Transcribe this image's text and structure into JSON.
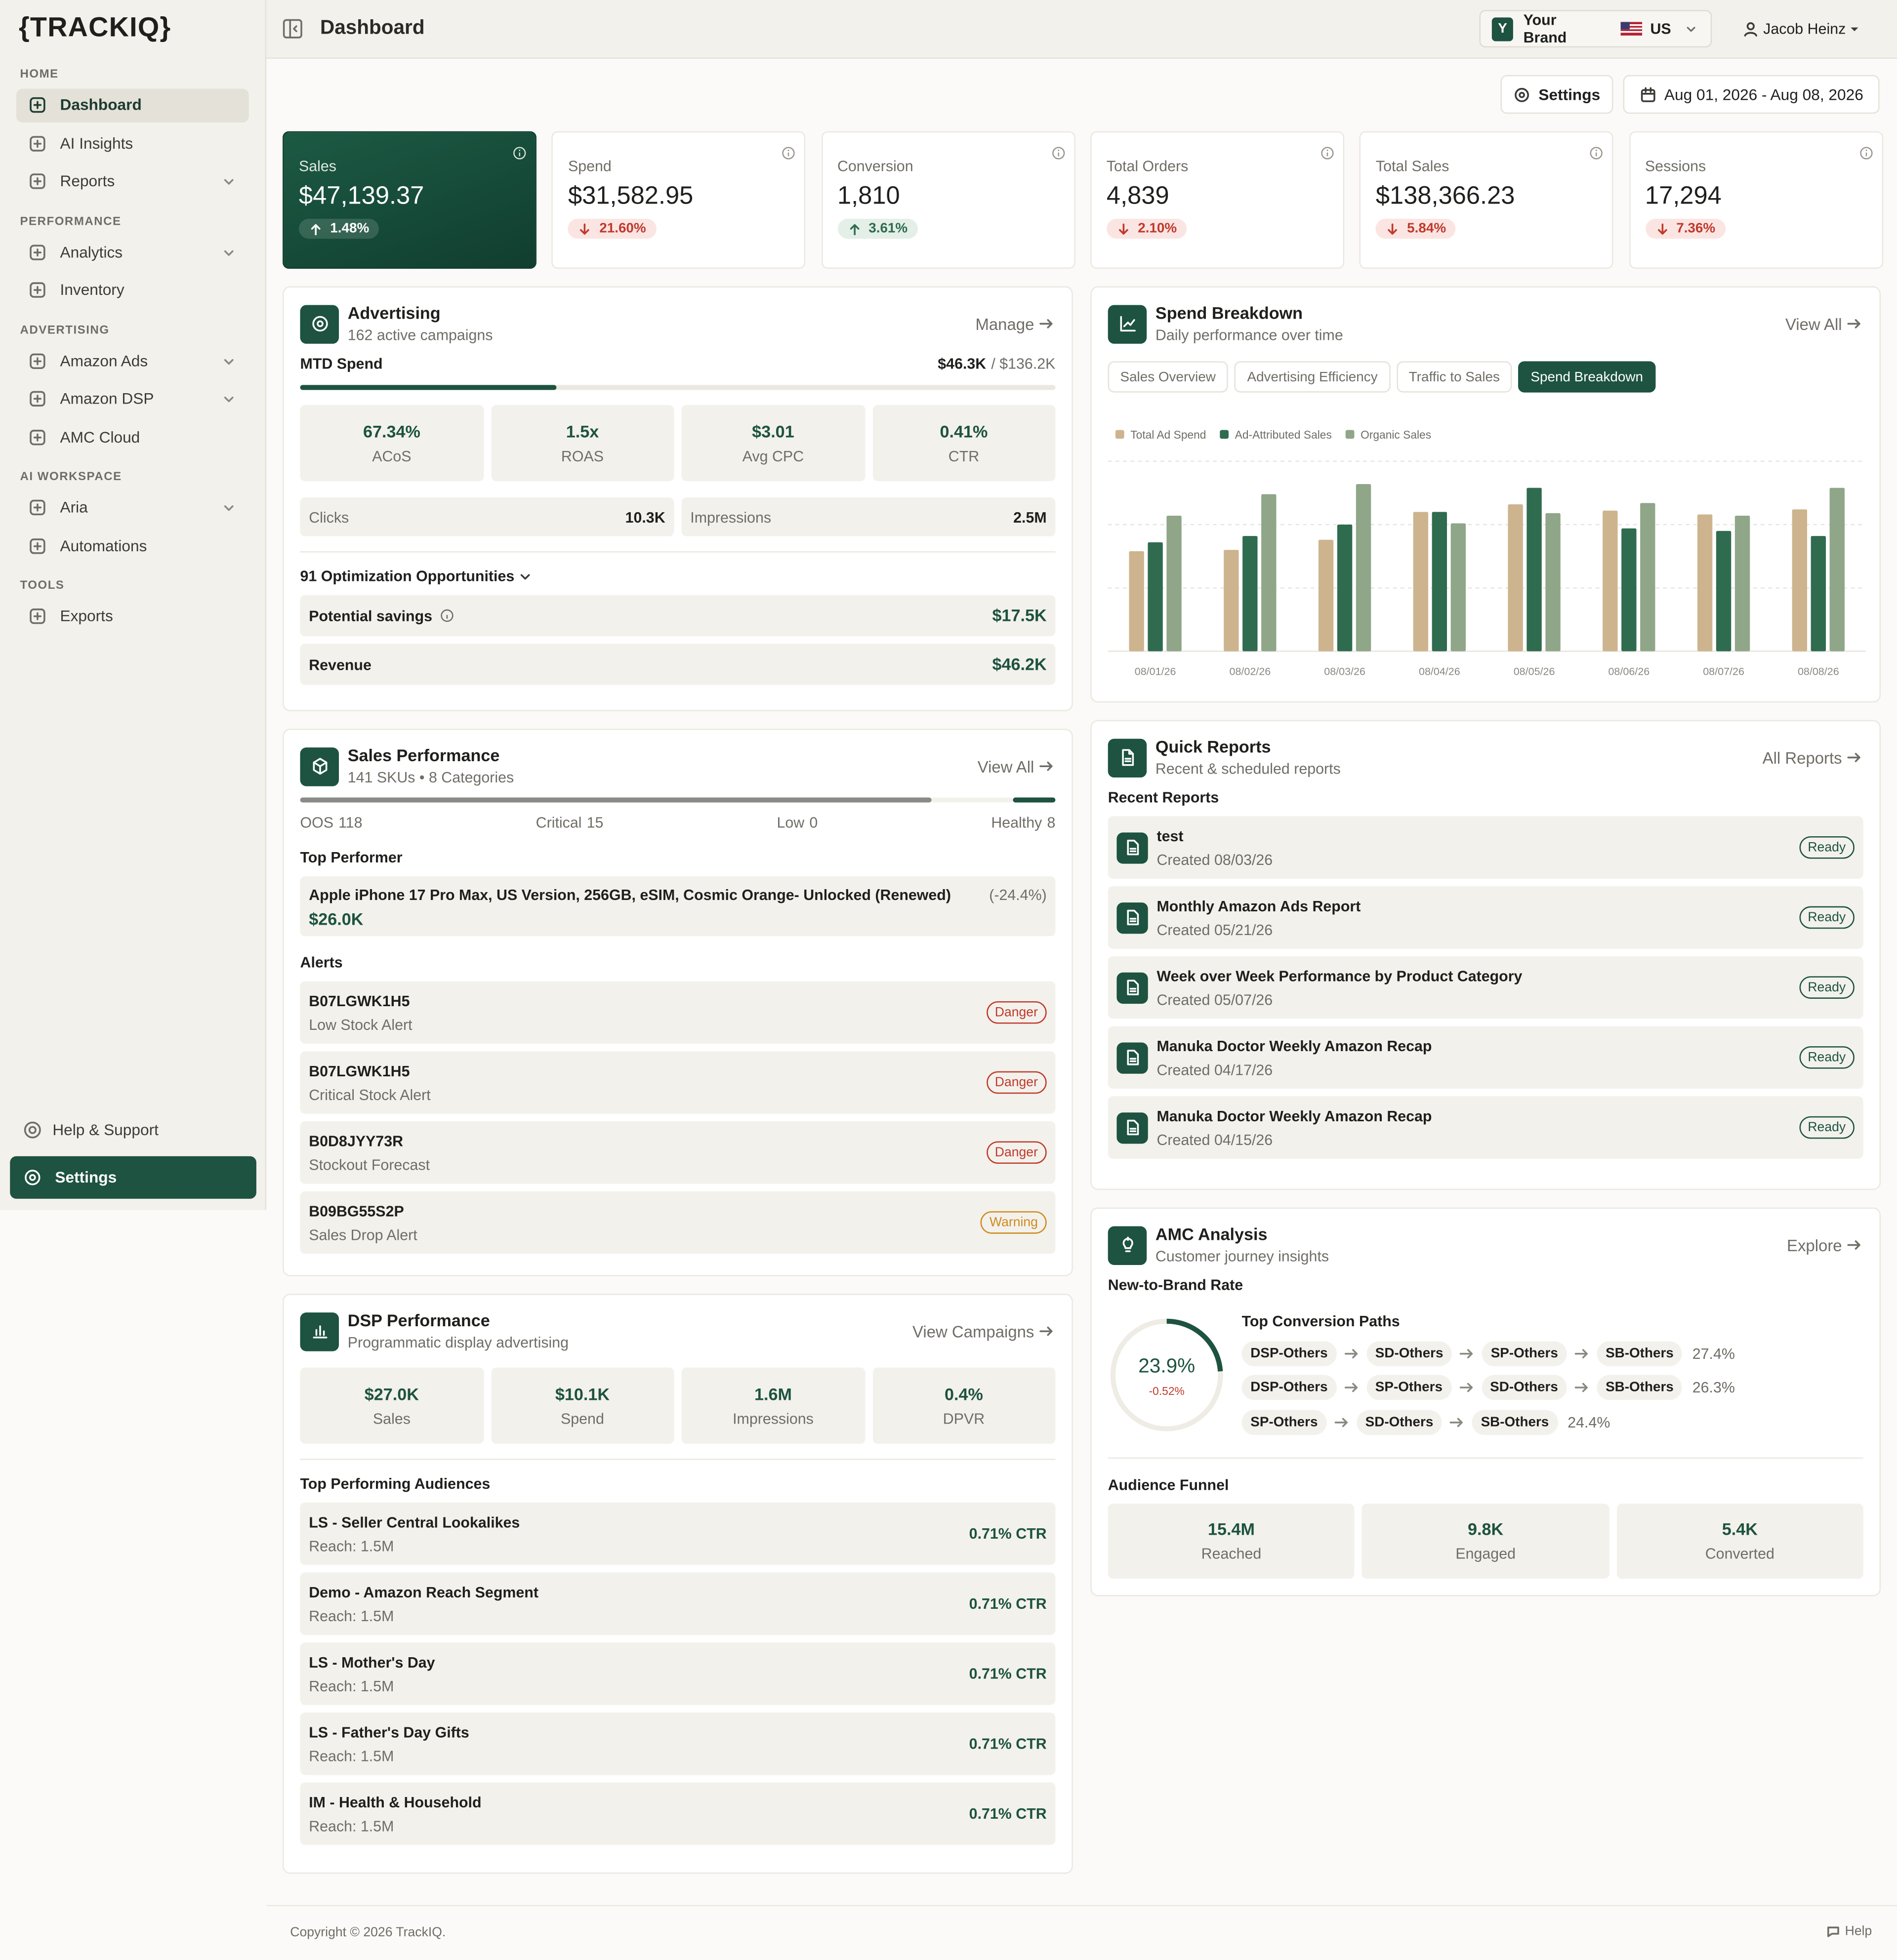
{
  "sidebar": {
    "logo": "{TRACKIQ}",
    "sections": [
      {
        "title": "HOME",
        "items": [
          {
            "label": "Dashboard",
            "active": true
          },
          {
            "label": "AI Insights"
          },
          {
            "label": "Reports",
            "expandable": true
          }
        ]
      },
      {
        "title": "PERFORMANCE",
        "items": [
          {
            "label": "Analytics",
            "expandable": true
          },
          {
            "label": "Inventory"
          }
        ]
      },
      {
        "title": "ADVERTISING",
        "items": [
          {
            "label": "Amazon Ads",
            "expandable": true
          },
          {
            "label": "Amazon DSP",
            "expandable": true
          },
          {
            "label": "AMC Cloud"
          }
        ]
      },
      {
        "title": "AI WORKSPACE",
        "items": [
          {
            "label": "Aria",
            "expandable": true
          },
          {
            "label": "Automations"
          }
        ]
      },
      {
        "title": "TOOLS",
        "items": [
          {
            "label": "Exports"
          }
        ]
      }
    ],
    "help": "Help & Support",
    "settings": "Settings"
  },
  "header": {
    "title": "Dashboard",
    "brand_initial": "Y",
    "brand": "Your Brand",
    "country": "US",
    "user": "Jacob Heinz",
    "settings": "Settings",
    "date_range": "Aug 01, 2026 - Aug 08, 2026"
  },
  "kpis": [
    {
      "label": "Sales",
      "value": "$47,139.37",
      "change": "1.48%",
      "trend": "up"
    },
    {
      "label": "Spend",
      "value": "$31,582.95",
      "change": "21.60%",
      "trend": "down"
    },
    {
      "label": "Conversion",
      "value": "1,810",
      "change": "3.61%",
      "trend": "up"
    },
    {
      "label": "Total Orders",
      "value": "4,839",
      "change": "2.10%",
      "trend": "down"
    },
    {
      "label": "Total Sales",
      "value": "$138,366.23",
      "change": "5.84%",
      "trend": "down"
    },
    {
      "label": "Sessions",
      "value": "17,294",
      "change": "7.36%",
      "trend": "down"
    }
  ],
  "advertising": {
    "title": "Advertising",
    "subtitle": "162 active campaigns",
    "action": "Manage",
    "mtd_label": "MTD Spend",
    "mtd_value": "$46.3K",
    "mtd_total": "/ $136.2K",
    "metrics": [
      {
        "value": "67.34%",
        "label": "ACoS"
      },
      {
        "value": "1.5x",
        "label": "ROAS"
      },
      {
        "value": "$3.01",
        "label": "Avg CPC"
      },
      {
        "value": "0.41%",
        "label": "CTR"
      }
    ],
    "clicks_label": "Clicks",
    "clicks": "10.3K",
    "impressions_label": "Impressions",
    "impressions": "2.5M",
    "opportunities": "91 Optimization Opportunities",
    "savings_label": "Potential savings",
    "savings": "$17.5K",
    "revenue_label": "Revenue",
    "revenue": "$46.2K"
  },
  "sales_performance": {
    "title": "Sales Performance",
    "subtitle": "141 SKUs • 8 Categories",
    "action": "View All",
    "stock": [
      {
        "label": "OOS",
        "count": 118,
        "color": "#8a8a86"
      },
      {
        "label": "Critical",
        "count": 15,
        "color": "#f3f1ec"
      },
      {
        "label": "Low",
        "count": 0,
        "color": "#d4a03a"
      },
      {
        "label": "Healthy",
        "count": 8,
        "color": "#1d5340"
      }
    ],
    "top_performer_label": "Top Performer",
    "product": "Apple iPhone 17 Pro Max, US Version, 256GB, eSIM, Cosmic Orange- Unlocked (Renewed)",
    "product_change": "(-24.4%)",
    "product_value": "$26.0K",
    "alerts_label": "Alerts",
    "alerts": [
      {
        "id": "B07LGWK1H5",
        "type": "Low Stock Alert",
        "badge": "Danger"
      },
      {
        "id": "B07LGWK1H5",
        "type": "Critical Stock Alert",
        "badge": "Danger"
      },
      {
        "id": "B0D8JYY73R",
        "type": "Stockout Forecast",
        "badge": "Danger"
      },
      {
        "id": "B09BG55S2P",
        "type": "Sales Drop Alert",
        "badge": "Warning"
      }
    ]
  },
  "dsp": {
    "title": "DSP Performance",
    "subtitle": "Programmatic display advertising",
    "action": "View Campaigns",
    "metrics": [
      {
        "value": "$27.0K",
        "label": "Sales"
      },
      {
        "value": "$10.1K",
        "label": "Spend"
      },
      {
        "value": "1.6M",
        "label": "Impressions"
      },
      {
        "value": "0.4%",
        "label": "DPVR"
      }
    ],
    "audiences_label": "Top Performing Audiences",
    "audiences": [
      {
        "name": "LS - Seller Central Lookalikes",
        "reach": "Reach: 1.5M",
        "ctr": "0.71% CTR"
      },
      {
        "name": "Demo - Amazon Reach Segment",
        "reach": "Reach: 1.5M",
        "ctr": "0.71% CTR"
      },
      {
        "name": "LS - Mother's Day",
        "reach": "Reach: 1.5M",
        "ctr": "0.71% CTR"
      },
      {
        "name": "LS - Father's Day Gifts",
        "reach": "Reach: 1.5M",
        "ctr": "0.71% CTR"
      },
      {
        "name": "IM - Health & Household",
        "reach": "Reach: 1.5M",
        "ctr": "0.71% CTR"
      }
    ]
  },
  "spend_breakdown": {
    "title": "Spend Breakdown",
    "subtitle": "Daily performance over time",
    "action": "View All",
    "tabs": [
      "Sales Overview",
      "Advertising Efficiency",
      "Traffic to Sales",
      "Spend Breakdown"
    ],
    "active_tab": 3
  },
  "chart_data": {
    "type": "bar",
    "categories": [
      "08/01/26",
      "08/02/26",
      "08/03/26",
      "08/04/26",
      "08/05/26",
      "08/06/26",
      "08/07/26",
      "08/08/26"
    ],
    "series": [
      {
        "name": "Total Ad Spend",
        "color": "#cdb48e",
        "values": [
          79,
          80,
          88,
          110,
          116,
          111,
          108,
          112
        ]
      },
      {
        "name": "Ad-Attributed Sales",
        "color": "#2f6b4f",
        "values": [
          86,
          91,
          100,
          110,
          129,
          97,
          95,
          91
        ]
      },
      {
        "name": "Organic Sales",
        "color": "#8fa688",
        "values": [
          107,
          124,
          132,
          101,
          109,
          117,
          107,
          129
        ]
      }
    ],
    "ylim": [
      0,
      150
    ],
    "yticks": [
      0,
      50,
      100,
      150
    ],
    "grid": true
  },
  "quick_reports": {
    "title": "Quick Reports",
    "subtitle": "Recent & scheduled reports",
    "action": "All Reports",
    "recent_label": "Recent Reports",
    "reports": [
      {
        "name": "test",
        "created": "Created 08/03/26",
        "status": "Ready"
      },
      {
        "name": "Monthly Amazon Ads Report",
        "created": "Created 05/21/26",
        "status": "Ready"
      },
      {
        "name": "Week over Week Performance by Product Category",
        "created": "Created 05/07/26",
        "status": "Ready"
      },
      {
        "name": "Manuka Doctor Weekly Amazon Recap",
        "created": "Created 04/17/26",
        "status": "Ready"
      },
      {
        "name": "Manuka Doctor Weekly Amazon Recap",
        "created": "Created 04/15/26",
        "status": "Ready"
      }
    ]
  },
  "amc": {
    "title": "AMC Analysis",
    "subtitle": "Customer journey insights",
    "action": "Explore",
    "ntb_label": "New-to-Brand Rate",
    "ntb": {
      "value": 23.9,
      "label": "23.9%"
    },
    "ntb_change": "-0.52%",
    "paths_label": "Top Conversion Paths",
    "paths": [
      {
        "steps": [
          "DSP-Others",
          "SD-Others",
          "SP-Others",
          "SB-Others"
        ],
        "share": "27.4%"
      },
      {
        "steps": [
          "DSP-Others",
          "SP-Others",
          "SD-Others",
          "SB-Others"
        ],
        "share": "26.3%"
      },
      {
        "steps": [
          "SP-Others",
          "SD-Others",
          "SB-Others"
        ],
        "share": "24.4%"
      }
    ],
    "funnel_label": "Audience Funnel",
    "funnel": [
      {
        "value": "15.4M",
        "label": "Reached"
      },
      {
        "value": "9.8K",
        "label": "Engaged"
      },
      {
        "value": "5.4K",
        "label": "Converted"
      }
    ]
  },
  "footer": {
    "copyright": "Copyright © 2026 TrackIQ.",
    "help": "Help"
  }
}
